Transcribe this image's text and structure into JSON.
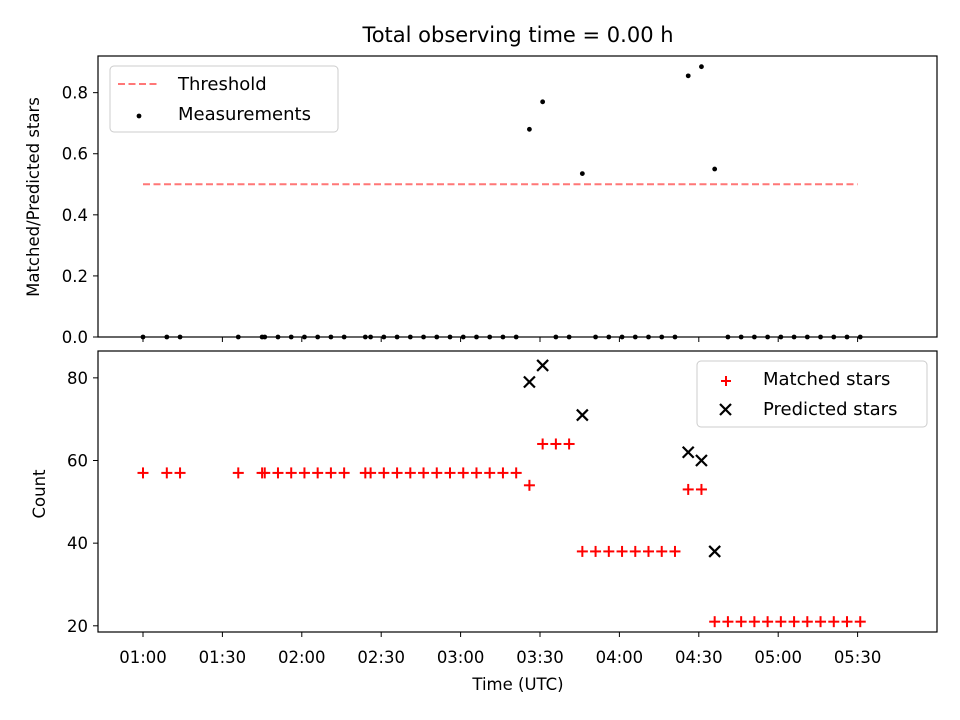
{
  "title": "Total observing time = 0.00 h",
  "colors": {
    "threshold": "#ff7777",
    "measurements": "#000000",
    "matched": "#ff0000",
    "predicted": "#000000"
  },
  "chart_data": [
    {
      "type": "scatter",
      "ylabel": "Matched/Predicted stars",
      "xlabel": "",
      "ylim": [
        0,
        0.92
      ],
      "yticks": [
        "0.0",
        "0.2",
        "0.4",
        "0.6",
        "0.8"
      ],
      "ytick_values": [
        0,
        0.2,
        0.4,
        0.6,
        0.8
      ],
      "legend_position": "upper left",
      "threshold": {
        "name": "Threshold",
        "value": 0.5,
        "x_start": "01:00",
        "x_end": "05:30"
      },
      "series": [
        {
          "name": "Measurements",
          "marker": "dot",
          "points": [
            [
              "01:00",
              0
            ],
            [
              "01:09",
              0
            ],
            [
              "01:14",
              0
            ],
            [
              "01:36",
              0
            ],
            [
              "01:45",
              0
            ],
            [
              "01:46",
              0
            ],
            [
              "01:51",
              0
            ],
            [
              "01:56",
              0
            ],
            [
              "02:01",
              0
            ],
            [
              "02:06",
              0
            ],
            [
              "02:11",
              0
            ],
            [
              "02:16",
              0
            ],
            [
              "02:24",
              0
            ],
            [
              "02:26",
              0
            ],
            [
              "02:31",
              0
            ],
            [
              "02:36",
              0
            ],
            [
              "02:41",
              0
            ],
            [
              "02:46",
              0
            ],
            [
              "02:51",
              0
            ],
            [
              "02:56",
              0
            ],
            [
              "03:01",
              0
            ],
            [
              "03:06",
              0
            ],
            [
              "03:11",
              0
            ],
            [
              "03:16",
              0
            ],
            [
              "03:21",
              0
            ],
            [
              "03:26",
              0.68
            ],
            [
              "03:31",
              0.77
            ],
            [
              "03:36",
              0
            ],
            [
              "03:41",
              0
            ],
            [
              "03:46",
              0.535
            ],
            [
              "03:51",
              0
            ],
            [
              "03:56",
              0
            ],
            [
              "04:01",
              0
            ],
            [
              "04:06",
              0
            ],
            [
              "04:11",
              0
            ],
            [
              "04:16",
              0
            ],
            [
              "04:21",
              0
            ],
            [
              "04:26",
              0.855
            ],
            [
              "04:31",
              0.885
            ],
            [
              "04:36",
              0.55
            ],
            [
              "04:41",
              0
            ],
            [
              "04:46",
              0
            ],
            [
              "04:51",
              0
            ],
            [
              "04:56",
              0
            ],
            [
              "05:01",
              0
            ],
            [
              "05:06",
              0
            ],
            [
              "05:11",
              0
            ],
            [
              "05:16",
              0
            ],
            [
              "05:21",
              0
            ],
            [
              "05:26",
              0
            ],
            [
              "05:31",
              0
            ]
          ]
        }
      ]
    },
    {
      "type": "scatter",
      "ylabel": "Count",
      "xlabel": "Time (UTC)",
      "ylim": [
        18.5,
        86.5
      ],
      "yticks": [
        "20",
        "40",
        "60",
        "80"
      ],
      "ytick_values": [
        20,
        40,
        60,
        80
      ],
      "xticks": [
        "01:00",
        "01:30",
        "02:00",
        "02:30",
        "03:00",
        "03:30",
        "04:00",
        "04:30",
        "05:00",
        "05:30"
      ],
      "xlim": [
        "00:43",
        "06:00"
      ],
      "legend_position": "upper right",
      "series": [
        {
          "name": "Matched stars",
          "marker": "plus",
          "points": [
            [
              "01:00",
              57
            ],
            [
              "01:09",
              57
            ],
            [
              "01:14",
              57
            ],
            [
              "01:36",
              57
            ],
            [
              "01:45",
              57
            ],
            [
              "01:46",
              57
            ],
            [
              "01:51",
              57
            ],
            [
              "01:56",
              57
            ],
            [
              "02:01",
              57
            ],
            [
              "02:06",
              57
            ],
            [
              "02:11",
              57
            ],
            [
              "02:16",
              57
            ],
            [
              "02:24",
              57
            ],
            [
              "02:26",
              57
            ],
            [
              "02:31",
              57
            ],
            [
              "02:36",
              57
            ],
            [
              "02:41",
              57
            ],
            [
              "02:46",
              57
            ],
            [
              "02:51",
              57
            ],
            [
              "02:56",
              57
            ],
            [
              "03:01",
              57
            ],
            [
              "03:06",
              57
            ],
            [
              "03:11",
              57
            ],
            [
              "03:16",
              57
            ],
            [
              "03:21",
              57
            ],
            [
              "03:26",
              54
            ],
            [
              "03:31",
              64
            ],
            [
              "03:36",
              64
            ],
            [
              "03:41",
              64
            ],
            [
              "03:46",
              38
            ],
            [
              "03:51",
              38
            ],
            [
              "03:56",
              38
            ],
            [
              "04:01",
              38
            ],
            [
              "04:06",
              38
            ],
            [
              "04:11",
              38
            ],
            [
              "04:16",
              38
            ],
            [
              "04:21",
              38
            ],
            [
              "04:26",
              53
            ],
            [
              "04:31",
              53
            ],
            [
              "04:36",
              21
            ],
            [
              "04:41",
              21
            ],
            [
              "04:46",
              21
            ],
            [
              "04:51",
              21
            ],
            [
              "04:56",
              21
            ],
            [
              "05:01",
              21
            ],
            [
              "05:06",
              21
            ],
            [
              "05:11",
              21
            ],
            [
              "05:16",
              21
            ],
            [
              "05:21",
              21
            ],
            [
              "05:26",
              21
            ],
            [
              "05:31",
              21
            ]
          ]
        },
        {
          "name": "Predicted stars",
          "marker": "x",
          "points": [
            [
              "03:26",
              79
            ],
            [
              "03:31",
              83
            ],
            [
              "03:46",
              71
            ],
            [
              "04:26",
              62
            ],
            [
              "04:31",
              60
            ],
            [
              "04:36",
              38
            ]
          ]
        }
      ]
    }
  ]
}
